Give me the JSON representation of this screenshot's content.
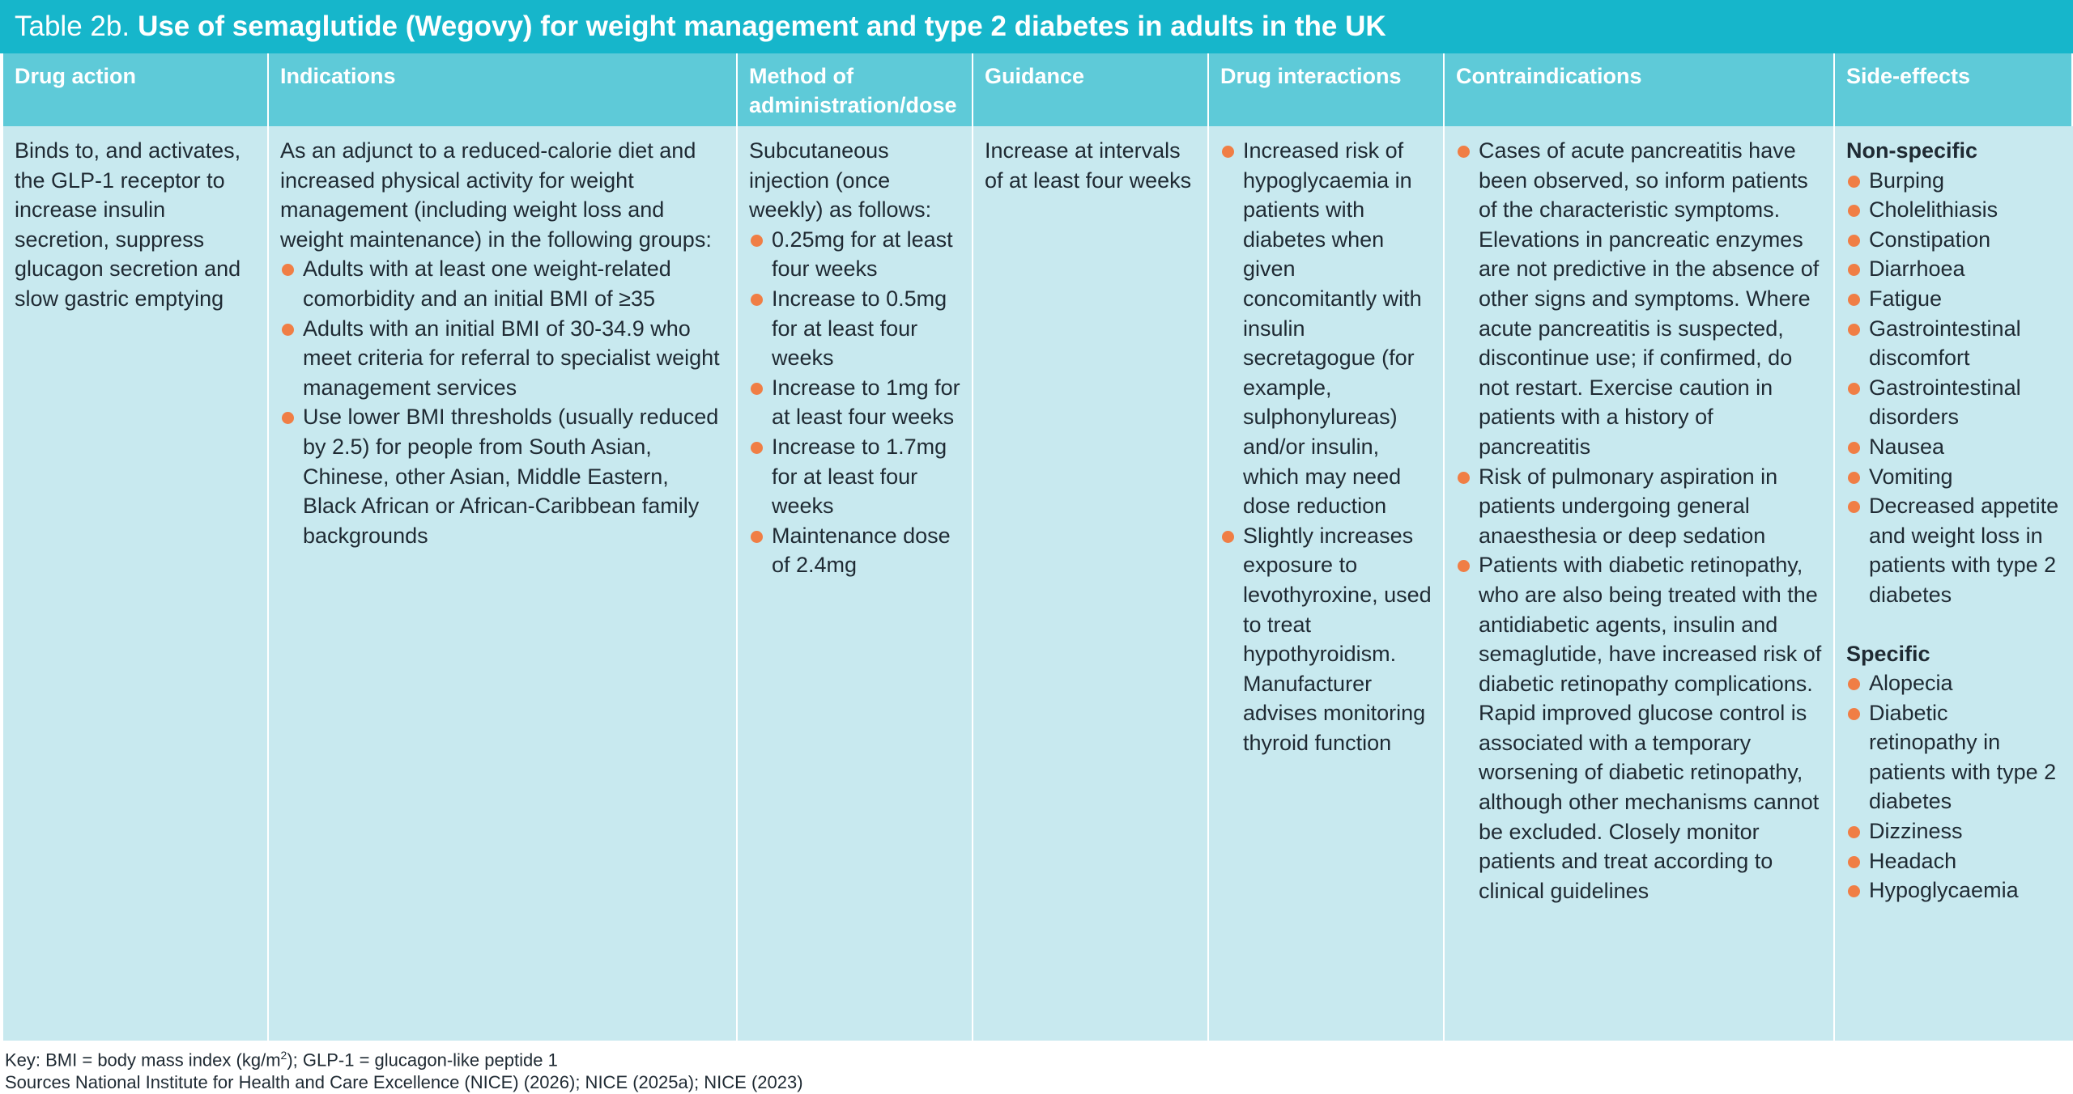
{
  "title": {
    "prefix": "Table 2b.",
    "main": "Use of semaglutide (Wegovy) for weight management and type 2 diabetes in adults in the UK"
  },
  "headers": [
    "Drug action",
    "Indications",
    "Method of administration/dose",
    "Guidance",
    "Drug interactions",
    "Contraindications",
    "Side-effects"
  ],
  "drug_action": "Binds to, and activates, the GLP-1 receptor to increase insulin secretion, suppress glucagon secretion and slow gastric emptying",
  "indications": {
    "intro": "As an adjunct to a reduced-calorie diet and increased physical activity for weight management (including weight loss and weight maintenance) in the following groups:",
    "bullets": [
      "Adults with at least one weight-related comorbidity and an initial BMI of ≥35",
      "Adults with an initial BMI of 30-34.9 who meet criteria for referral to specialist weight management services",
      "Use lower BMI thresholds (usually reduced by 2.5) for people from South Asian, Chinese, other Asian, Middle Eastern, Black African or African-Caribbean family backgrounds"
    ]
  },
  "method": {
    "intro": "Subcutaneous injection (once weekly) as follows:",
    "bullets": [
      "0.25mg for at least four weeks",
      "Increase to 0.5mg for at least four weeks",
      "Increase to 1mg for at least four weeks",
      "Increase to 1.7mg for at least four weeks",
      "Maintenance dose of 2.4mg"
    ]
  },
  "guidance": "Increase at intervals of at least four weeks",
  "drug_interactions": [
    "Increased risk of hypoglycaemia in patients with diabetes when given concomitantly with insulin secretagogue (for example, sulphonylureas) and/or insulin, which may need dose reduction",
    "Slightly increases exposure to levothyroxine, used to treat hypothyroidism. Manufacturer advises monitoring thyroid function"
  ],
  "contraindications": [
    "Cases of acute pancreatitis have been observed, so inform patients of the characteristic symptoms. Elevations in pancreatic enzymes are not predictive in the absence of other signs and symptoms. Where acute pancreatitis is suspected, discontinue use; if confirmed, do not restart. Exercise caution in patients with a history of pancreatitis",
    "Risk of pulmonary aspiration in patients undergoing general anaesthesia or deep sedation",
    "Patients with diabetic retinopathy, who are also being treated with the antidiabetic agents, insulin and semaglutide, have increased risk of diabetic retinopathy complications. Rapid improved glucose control is associated with a temporary worsening of diabetic retinopathy, although other mechanisms cannot be excluded. Closely monitor patients and treat according to clinical guidelines"
  ],
  "side_effects": {
    "nonspecific_label": "Non-specific",
    "nonspecific": [
      "Burping",
      "Cholelithiasis",
      "Constipation",
      "Diarrhoea",
      "Fatigue",
      "Gastrointestinal discomfort",
      "Gastrointestinal disorders",
      "Nausea",
      "Vomiting",
      "Decreased appetite and weight loss in patients with type 2 diabetes"
    ],
    "specific_label": "Specific",
    "specific": [
      "Alopecia",
      "Diabetic retinopathy in patients with type 2 diabetes",
      "Dizziness",
      "Headach",
      "Hypoglycaemia"
    ]
  },
  "footnotes": {
    "key_pre": "Key: BMI = body mass index (kg/m",
    "key_sup": "2",
    "key_post": "); GLP-1 = glucagon-like peptide 1",
    "sources": "Sources National Institute for Health and Care Excellence (NICE) (2026); NICE (2025a); NICE (2023)"
  },
  "colors": {
    "title_bg": "#16b6cb",
    "header_bg": "#5ecad8",
    "body_bg": "#c8e9ef",
    "bullet": "#f07e45"
  }
}
